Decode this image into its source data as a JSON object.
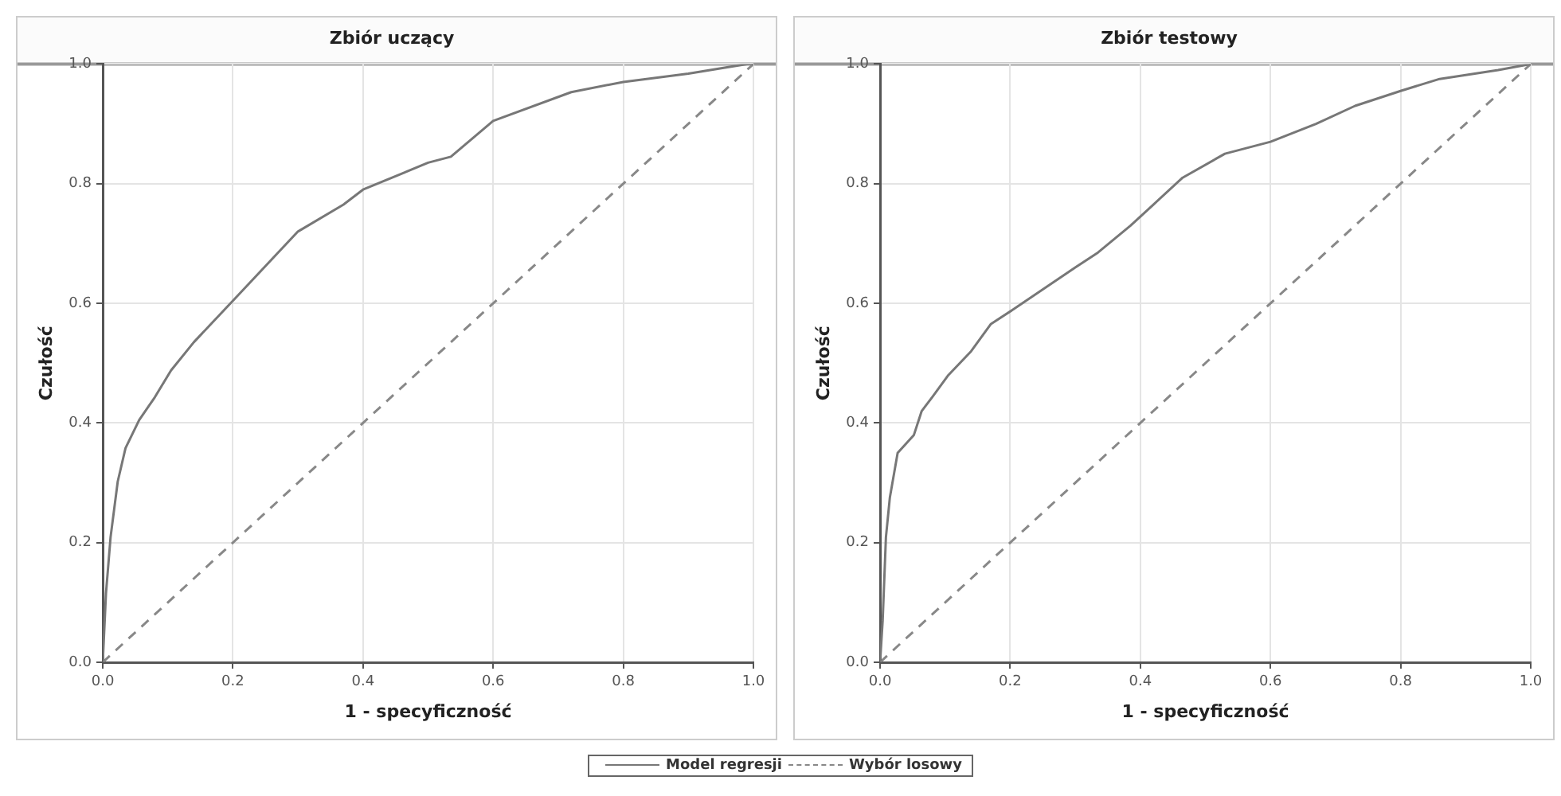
{
  "chart_data": [
    {
      "type": "line",
      "title": "Zbiór uczący",
      "xlabel": "1 - specyficzność",
      "ylabel": "Czułość",
      "xlim": [
        0,
        1
      ],
      "ylim": [
        0,
        1
      ],
      "xticks": [
        {
          "value": 0,
          "label": "0.0"
        },
        {
          "value": 0.2,
          "label": "0.2"
        },
        {
          "value": 0.4,
          "label": "0.4"
        },
        {
          "value": 0.6,
          "label": "0.6"
        },
        {
          "value": 0.8,
          "label": "0.8"
        },
        {
          "value": 1,
          "label": "1.0"
        }
      ],
      "yticks": [
        {
          "value": 0,
          "label": "0.0"
        },
        {
          "value": 0.2,
          "label": "0.2"
        },
        {
          "value": 0.4,
          "label": "0.4"
        },
        {
          "value": 0.6,
          "label": "0.6"
        },
        {
          "value": 0.8,
          "label": "0.8"
        },
        {
          "value": 1,
          "label": "1.0"
        }
      ],
      "grid": true,
      "legend": "bottom",
      "marker": "none",
      "series": [
        {
          "name": "Model regresji",
          "color": "#777777",
          "line_style": "solid",
          "x": [
            0,
            0.005,
            0.012,
            0.023,
            0.035,
            0.056,
            0.08,
            0.105,
            0.14,
            0.205,
            0.3,
            0.37,
            0.4,
            0.5,
            0.535,
            0.6,
            0.72,
            0.8,
            0.9,
            0.99,
            1
          ],
          "values": [
            0,
            0.116,
            0.209,
            0.302,
            0.358,
            0.405,
            0.443,
            0.488,
            0.535,
            0.61,
            0.72,
            0.765,
            0.79,
            0.835,
            0.845,
            0.905,
            0.953,
            0.97,
            0.984,
            1,
            1
          ]
        },
        {
          "name": "Wybór losowy",
          "color": "#888888",
          "line_style": "dashed",
          "x": [
            0,
            1
          ],
          "values": [
            0,
            1
          ]
        }
      ]
    },
    {
      "type": "line",
      "title": "Zbiór testowy",
      "xlabel": "1 - specyficzność",
      "ylabel": "Czułość",
      "xlim": [
        0,
        1
      ],
      "ylim": [
        0,
        1
      ],
      "xticks": [
        {
          "value": 0,
          "label": "0.0"
        },
        {
          "value": 0.2,
          "label": "0.2"
        },
        {
          "value": 0.4,
          "label": "0.4"
        },
        {
          "value": 0.6,
          "label": "0.6"
        },
        {
          "value": 0.8,
          "label": "0.8"
        },
        {
          "value": 1,
          "label": "1.0"
        }
      ],
      "yticks": [
        {
          "value": 0,
          "label": "0.0"
        },
        {
          "value": 0.2,
          "label": "0.2"
        },
        {
          "value": 0.4,
          "label": "0.4"
        },
        {
          "value": 0.6,
          "label": "0.6"
        },
        {
          "value": 0.8,
          "label": "0.8"
        },
        {
          "value": 1,
          "label": "1.0"
        }
      ],
      "grid": true,
      "marker": "none",
      "series": [
        {
          "color": "#777777",
          "line_style": "solid",
          "x": [
            0,
            0.004,
            0.009,
            0.015,
            0.027,
            0.052,
            0.064,
            0.08,
            0.105,
            0.14,
            0.17,
            0.205,
            0.3,
            0.335,
            0.385,
            0.42,
            0.465,
            0.53,
            0.6,
            0.67,
            0.73,
            0.8,
            0.86,
            0.95,
            1
          ],
          "values": [
            0,
            0.07,
            0.209,
            0.275,
            0.35,
            0.38,
            0.42,
            0.443,
            0.48,
            0.52,
            0.565,
            0.59,
            0.66,
            0.685,
            0.73,
            0.765,
            0.81,
            0.85,
            0.87,
            0.9,
            0.93,
            0.955,
            0.975,
            0.99,
            1
          ]
        },
        {
          "color": "#888888",
          "line_style": "dashed",
          "x": [
            0,
            1
          ],
          "values": [
            0,
            1
          ]
        }
      ]
    }
  ]
}
